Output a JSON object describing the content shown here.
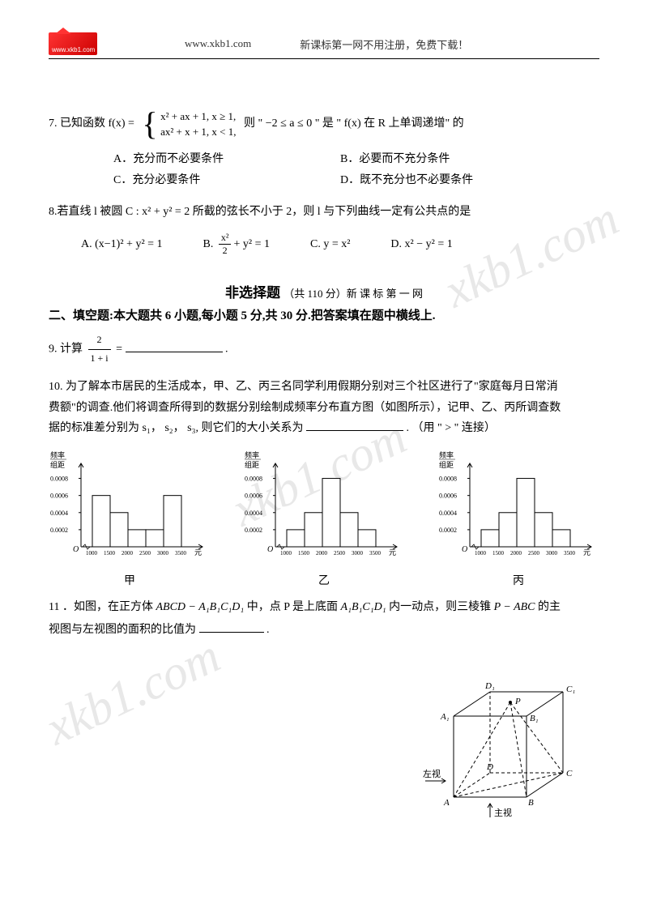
{
  "header": {
    "url": "www.xkb1.com",
    "tagline": "新课标第一网不用注册，免费下载！",
    "logo_text": "www.xkb1.com",
    "logo_color": "#ff3333"
  },
  "watermark_text": "xkb1.com",
  "q7": {
    "prefix": "7. 已知函数",
    "fn": "f(x) =",
    "piece1": "x² + ax + 1,    x ≥ 1,",
    "piece2": "ax² + x + 1,    x < 1,",
    "mid": "则 \" −2 ≤ a ≤ 0 \" 是 \" f(x) 在 R 上单调递增\" 的",
    "optA": "A．充分而不必要条件",
    "optB": "B．必要而不充分条件",
    "optC": "C．充分必要条件",
    "optD": "D．既不充分也不必要条件"
  },
  "q8": {
    "text": "8.若直线 l 被圆 C : x² + y² = 2 所截的弦长不小于 2，则 l 与下列曲线一定有公共点的是",
    "labelA": "A.",
    "optA": "(x−1)² + y² = 1",
    "labelB": "B.",
    "optB_num": "x²",
    "optB_den": "2",
    "optB_rest": " + y² = 1",
    "labelC": "C.",
    "optC": "y = x²",
    "labelD": "D.",
    "optD": "x² − y² = 1"
  },
  "section_nonchoice": {
    "title": "非选择题",
    "sub": "（共 110 分）新 课 标 第 一 网"
  },
  "section2_title": "二、填空题:本大题共 6 小题,每小题 5 分,共 30 分.把答案填在题中横线上.",
  "q9": {
    "prefix": "9. 计算 ",
    "num": "2",
    "den": "1 + i",
    "eq": " = ",
    "suffix": "."
  },
  "q10": {
    "line1": "10. 为了解本市居民的生活成本，甲、乙、丙三名同学利用假期分别对三个社区进行了\"家庭每月日常消",
    "line2": "费额\"的调查.他们将调查所得到的数据分别绘制成频率分布直方图（如图所示），记甲、乙、丙所调查数",
    "line3_pre": "据的标准差分别为 s₁， s₂， s₃, 则它们的大小关系为",
    "line3_post": ". （用 \" > \" 连接）"
  },
  "histograms": {
    "ylabel_top": "频率",
    "ylabel_bot": "组距",
    "yticks": [
      "0.0002",
      "0.0004",
      "0.0006",
      "0.0008"
    ],
    "xticks": [
      "1000",
      "1500",
      "2000",
      "2500",
      "3000",
      "3500"
    ],
    "xunit": "元",
    "labels": [
      "甲",
      "乙",
      "丙"
    ],
    "jia_heights": [
      0.0006,
      0.0004,
      0.0002,
      0.0002,
      0.0006
    ],
    "yi_heights": [
      0.0002,
      0.0004,
      0.0008,
      0.0004,
      0.0002
    ],
    "bing_heights": [
      0.0002,
      0.0004,
      0.0008,
      0.0004,
      0.0002
    ],
    "bar_fill": "#ffffff",
    "bar_stroke": "#000000",
    "axis_color": "#000000",
    "yaxis_max": 0.0009
  },
  "q11": {
    "line1_a": "11 ．如图，在正方体 ",
    "cube_name": "ABCD − A₁B₁C₁D₁",
    "line1_b": " 中，点 P 是上底面 ",
    "top_face": "A₁B₁C₁D₁",
    "line1_c": " 内一动点，则三棱锥 ",
    "pyramid": "P − ABC",
    "line1_d": " 的主",
    "line2": "视图与左视图的面积的比值为",
    "suffix": "."
  },
  "cube": {
    "labels": {
      "A": "A",
      "B": "B",
      "C": "C",
      "D": "D",
      "A1": "A₁",
      "B1": "B₁",
      "C1": "C₁",
      "D1": "D₁",
      "P": "P"
    },
    "left_view": "左视",
    "main_view": "主视",
    "stroke": "#000000"
  }
}
